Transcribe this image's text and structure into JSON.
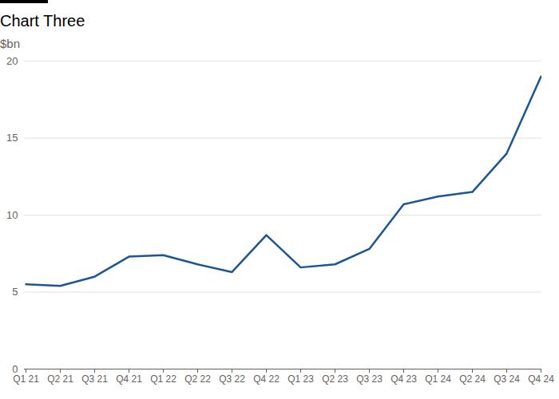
{
  "chart_data": {
    "type": "line",
    "title": "Chart Three",
    "subtitle": "$bn",
    "categories": [
      "Q1 21",
      "Q2 21",
      "Q3 21",
      "Q4 21",
      "Q1 22",
      "Q2 22",
      "Q3 22",
      "Q4 22",
      "Q1 23",
      "Q2 23",
      "Q3 23",
      "Q4 23",
      "Q1 24",
      "Q2 24",
      "Q3 24",
      "Q4 24"
    ],
    "values": [
      5.5,
      5.4,
      6.0,
      7.3,
      7.4,
      6.8,
      6.3,
      8.7,
      6.6,
      6.8,
      7.8,
      10.7,
      11.2,
      11.5,
      14.0,
      19.0
    ],
    "color": "#1c5596",
    "ylim": [
      0,
      20
    ],
    "yticks": [
      0,
      5,
      10,
      15,
      20
    ],
    "grid": true
  }
}
